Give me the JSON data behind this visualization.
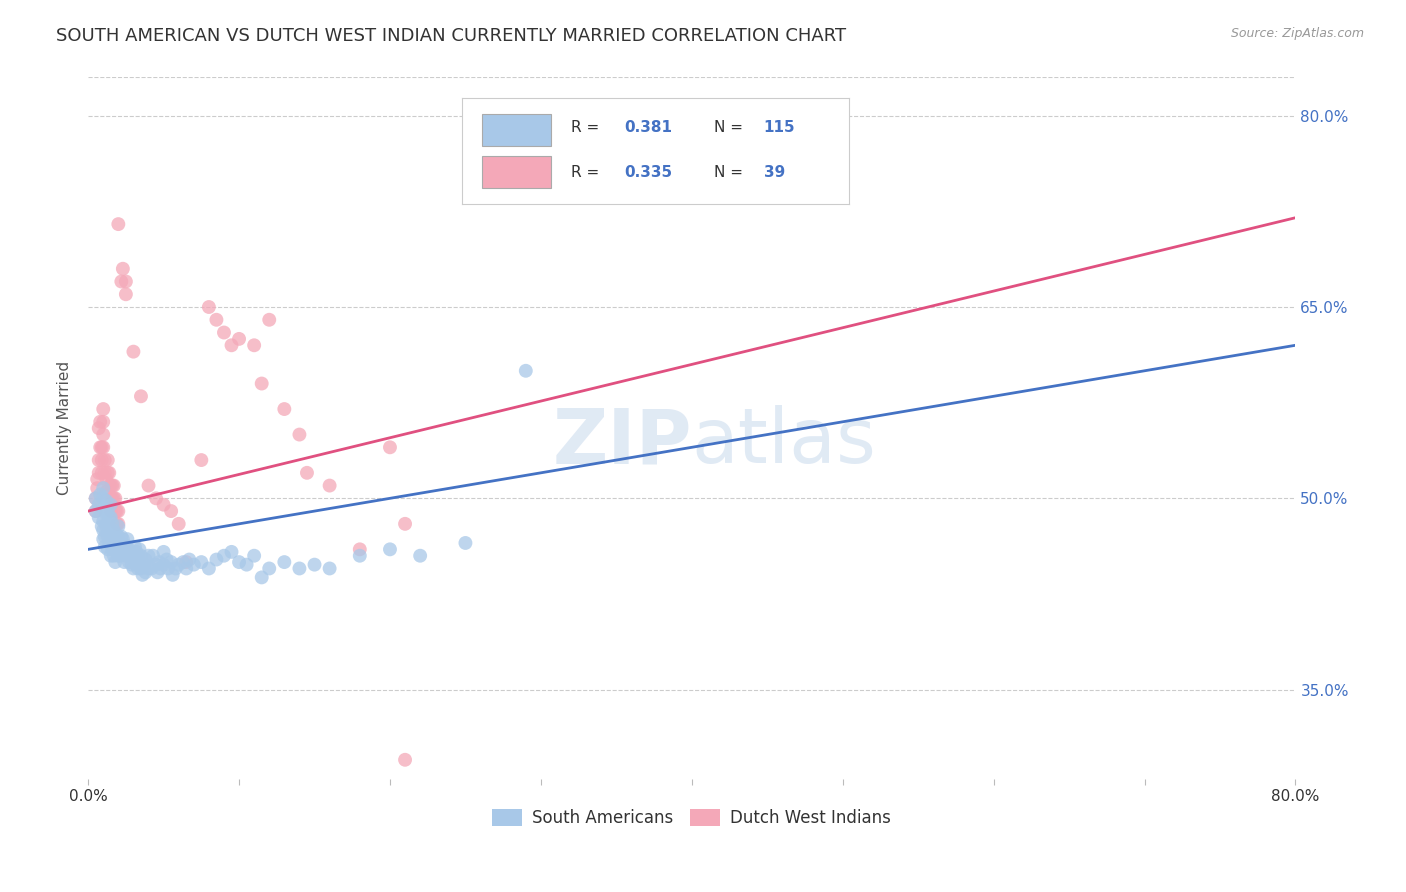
{
  "title": "SOUTH AMERICAN VS DUTCH WEST INDIAN CURRENTLY MARRIED CORRELATION CHART",
  "source": "Source: ZipAtlas.com",
  "ylabel": "Currently Married",
  "right_yticks": [
    "80.0%",
    "65.0%",
    "50.0%",
    "35.0%"
  ],
  "right_ytick_vals": [
    0.8,
    0.65,
    0.5,
    0.35
  ],
  "watermark": "ZIPatlas",
  "legend_label_blue": "South Americans",
  "legend_label_pink": "Dutch West Indians",
  "blue_color": "#a8c8e8",
  "pink_color": "#f4a8b8",
  "line_blue": "#4472c4",
  "line_pink": "#e05080",
  "blue_scatter": [
    [
      0.005,
      0.49
    ],
    [
      0.005,
      0.5
    ],
    [
      0.007,
      0.485
    ],
    [
      0.007,
      0.495
    ],
    [
      0.008,
      0.503
    ],
    [
      0.009,
      0.478
    ],
    [
      0.01,
      0.468
    ],
    [
      0.01,
      0.475
    ],
    [
      0.01,
      0.482
    ],
    [
      0.01,
      0.492
    ],
    [
      0.01,
      0.5
    ],
    [
      0.01,
      0.508
    ],
    [
      0.011,
      0.462
    ],
    [
      0.011,
      0.47
    ],
    [
      0.012,
      0.478
    ],
    [
      0.012,
      0.488
    ],
    [
      0.012,
      0.498
    ],
    [
      0.013,
      0.46
    ],
    [
      0.013,
      0.47
    ],
    [
      0.013,
      0.48
    ],
    [
      0.013,
      0.49
    ],
    [
      0.014,
      0.465
    ],
    [
      0.014,
      0.475
    ],
    [
      0.014,
      0.485
    ],
    [
      0.015,
      0.455
    ],
    [
      0.015,
      0.465
    ],
    [
      0.015,
      0.475
    ],
    [
      0.015,
      0.485
    ],
    [
      0.015,
      0.495
    ],
    [
      0.016,
      0.46
    ],
    [
      0.016,
      0.47
    ],
    [
      0.016,
      0.48
    ],
    [
      0.017,
      0.455
    ],
    [
      0.017,
      0.465
    ],
    [
      0.017,
      0.475
    ],
    [
      0.018,
      0.45
    ],
    [
      0.018,
      0.462
    ],
    [
      0.018,
      0.472
    ],
    [
      0.019,
      0.458
    ],
    [
      0.019,
      0.468
    ],
    [
      0.02,
      0.455
    ],
    [
      0.02,
      0.462
    ],
    [
      0.02,
      0.47
    ],
    [
      0.02,
      0.478
    ],
    [
      0.021,
      0.455
    ],
    [
      0.021,
      0.465
    ],
    [
      0.022,
      0.46
    ],
    [
      0.022,
      0.47
    ],
    [
      0.023,
      0.458
    ],
    [
      0.023,
      0.468
    ],
    [
      0.024,
      0.45
    ],
    [
      0.024,
      0.46
    ],
    [
      0.025,
      0.455
    ],
    [
      0.025,
      0.463
    ],
    [
      0.026,
      0.458
    ],
    [
      0.026,
      0.468
    ],
    [
      0.027,
      0.45
    ],
    [
      0.027,
      0.46
    ],
    [
      0.028,
      0.455
    ],
    [
      0.029,
      0.448
    ],
    [
      0.03,
      0.445
    ],
    [
      0.03,
      0.455
    ],
    [
      0.031,
      0.452
    ],
    [
      0.031,
      0.462
    ],
    [
      0.032,
      0.448
    ],
    [
      0.032,
      0.458
    ],
    [
      0.033,
      0.445
    ],
    [
      0.033,
      0.455
    ],
    [
      0.034,
      0.45
    ],
    [
      0.034,
      0.46
    ],
    [
      0.035,
      0.445
    ],
    [
      0.035,
      0.455
    ],
    [
      0.036,
      0.44
    ],
    [
      0.037,
      0.448
    ],
    [
      0.038,
      0.442
    ],
    [
      0.038,
      0.452
    ],
    [
      0.04,
      0.445
    ],
    [
      0.04,
      0.455
    ],
    [
      0.042,
      0.445
    ],
    [
      0.043,
      0.455
    ],
    [
      0.045,
      0.448
    ],
    [
      0.046,
      0.442
    ],
    [
      0.047,
      0.45
    ],
    [
      0.048,
      0.445
    ],
    [
      0.05,
      0.448
    ],
    [
      0.05,
      0.458
    ],
    [
      0.052,
      0.452
    ],
    [
      0.053,
      0.445
    ],
    [
      0.055,
      0.45
    ],
    [
      0.056,
      0.44
    ],
    [
      0.058,
      0.445
    ],
    [
      0.06,
      0.448
    ],
    [
      0.063,
      0.45
    ],
    [
      0.065,
      0.445
    ],
    [
      0.067,
      0.452
    ],
    [
      0.07,
      0.448
    ],
    [
      0.075,
      0.45
    ],
    [
      0.08,
      0.445
    ],
    [
      0.085,
      0.452
    ],
    [
      0.09,
      0.455
    ],
    [
      0.095,
      0.458
    ],
    [
      0.1,
      0.45
    ],
    [
      0.105,
      0.448
    ],
    [
      0.11,
      0.455
    ],
    [
      0.115,
      0.438
    ],
    [
      0.12,
      0.445
    ],
    [
      0.13,
      0.45
    ],
    [
      0.14,
      0.445
    ],
    [
      0.15,
      0.448
    ],
    [
      0.16,
      0.445
    ],
    [
      0.18,
      0.455
    ],
    [
      0.2,
      0.46
    ],
    [
      0.22,
      0.455
    ],
    [
      0.25,
      0.465
    ],
    [
      0.29,
      0.6
    ]
  ],
  "pink_scatter": [
    [
      0.005,
      0.49
    ],
    [
      0.005,
      0.5
    ],
    [
      0.006,
      0.508
    ],
    [
      0.006,
      0.515
    ],
    [
      0.007,
      0.52
    ],
    [
      0.007,
      0.53
    ],
    [
      0.007,
      0.555
    ],
    [
      0.008,
      0.56
    ],
    [
      0.008,
      0.54
    ],
    [
      0.009,
      0.52
    ],
    [
      0.009,
      0.53
    ],
    [
      0.009,
      0.54
    ],
    [
      0.01,
      0.54
    ],
    [
      0.01,
      0.55
    ],
    [
      0.01,
      0.56
    ],
    [
      0.01,
      0.57
    ],
    [
      0.011,
      0.52
    ],
    [
      0.011,
      0.53
    ],
    [
      0.012,
      0.505
    ],
    [
      0.012,
      0.515
    ],
    [
      0.013,
      0.52
    ],
    [
      0.013,
      0.53
    ],
    [
      0.014,
      0.51
    ],
    [
      0.014,
      0.52
    ],
    [
      0.015,
      0.49
    ],
    [
      0.015,
      0.5
    ],
    [
      0.015,
      0.51
    ],
    [
      0.016,
      0.5
    ],
    [
      0.016,
      0.51
    ],
    [
      0.017,
      0.5
    ],
    [
      0.017,
      0.51
    ],
    [
      0.018,
      0.49
    ],
    [
      0.018,
      0.5
    ],
    [
      0.019,
      0.48
    ],
    [
      0.019,
      0.49
    ],
    [
      0.02,
      0.48
    ],
    [
      0.02,
      0.49
    ],
    [
      0.02,
      0.715
    ],
    [
      0.022,
      0.67
    ],
    [
      0.023,
      0.68
    ],
    [
      0.025,
      0.66
    ],
    [
      0.025,
      0.67
    ],
    [
      0.03,
      0.615
    ],
    [
      0.035,
      0.58
    ],
    [
      0.04,
      0.51
    ],
    [
      0.045,
      0.5
    ],
    [
      0.05,
      0.495
    ],
    [
      0.055,
      0.49
    ],
    [
      0.06,
      0.48
    ],
    [
      0.065,
      0.45
    ],
    [
      0.075,
      0.53
    ],
    [
      0.08,
      0.65
    ],
    [
      0.085,
      0.64
    ],
    [
      0.09,
      0.63
    ],
    [
      0.095,
      0.62
    ],
    [
      0.1,
      0.625
    ],
    [
      0.11,
      0.62
    ],
    [
      0.115,
      0.59
    ],
    [
      0.12,
      0.64
    ],
    [
      0.13,
      0.57
    ],
    [
      0.14,
      0.55
    ],
    [
      0.145,
      0.52
    ],
    [
      0.16,
      0.51
    ],
    [
      0.18,
      0.46
    ],
    [
      0.2,
      0.54
    ],
    [
      0.21,
      0.48
    ],
    [
      0.21,
      0.295
    ]
  ],
  "blue_line_x": [
    0.0,
    0.8
  ],
  "blue_line_y_start": 0.46,
  "blue_line_y_end": 0.62,
  "pink_line_x": [
    0.0,
    0.8
  ],
  "pink_line_y_start": 0.49,
  "pink_line_y_end": 0.72,
  "xlim": [
    0.0,
    0.8
  ],
  "ylim": [
    0.28,
    0.83
  ],
  "grid_color": "#cccccc",
  "background_color": "#ffffff",
  "title_fontsize": 13,
  "axis_label_fontsize": 11,
  "tick_fontsize": 11,
  "marker_size": 100,
  "legend_R_N_color": "#4472c4",
  "legend_text_color": "#333333"
}
